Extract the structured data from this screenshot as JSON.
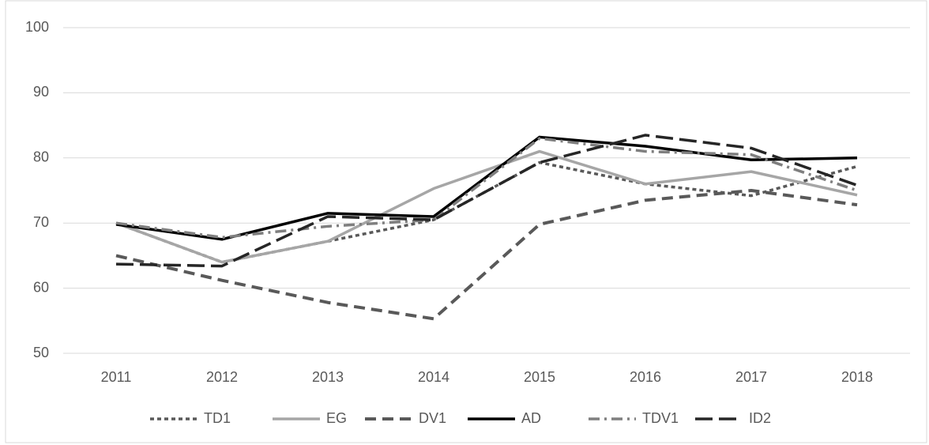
{
  "chart_data": {
    "type": "line",
    "categories": [
      "2011",
      "2012",
      "2013",
      "2014",
      "2015",
      "2016",
      "2017",
      "2018"
    ],
    "series": [
      {
        "name": "TD1",
        "color": "#595959",
        "dash": "5,4",
        "width": 3.5,
        "values": [
          70,
          64,
          67.2,
          70.5,
          79.3,
          76,
          74.2,
          78.7
        ]
      },
      {
        "name": "EG",
        "color": "#a6a6a6",
        "dash": "none",
        "width": 3.5,
        "values": [
          70,
          64,
          67.2,
          75.3,
          81,
          76,
          77.9,
          74.3
        ]
      },
      {
        "name": "DV1",
        "color": "#595959",
        "dash": "14,8",
        "width": 4,
        "values": [
          65,
          61.2,
          57.8,
          55.3,
          69.8,
          73.5,
          75,
          72.8
        ]
      },
      {
        "name": "AD",
        "color": "#000000",
        "dash": "none",
        "width": 3.5,
        "values": [
          69.8,
          67.5,
          71.5,
          71,
          83.2,
          81.8,
          79.7,
          80
        ]
      },
      {
        "name": "TDV1",
        "color": "#7f7f7f",
        "dash": "14,6,3,6",
        "width": 3.5,
        "values": [
          70,
          67.8,
          69.5,
          70.5,
          83,
          81,
          80.5,
          75
        ]
      },
      {
        "name": "ID2",
        "color": "#262626",
        "dash": "22,8",
        "width": 3.5,
        "values": [
          63.7,
          63.4,
          71,
          70.5,
          79.3,
          83.5,
          81.5,
          75.8
        ]
      }
    ],
    "ylim": [
      50,
      100
    ],
    "yticks": [
      50,
      60,
      70,
      80,
      90,
      100
    ],
    "grid": true,
    "legend": "bottom"
  }
}
